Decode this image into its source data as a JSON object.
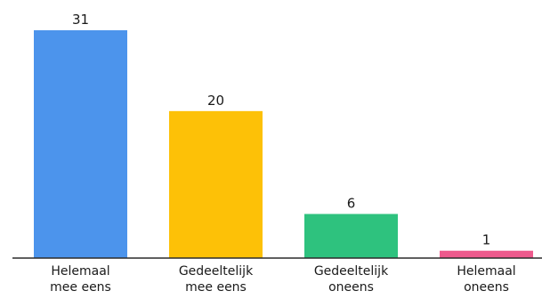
{
  "chart_data": {
    "type": "bar",
    "categories": [
      [
        "Helemaal",
        "mee eens"
      ],
      [
        "Gedeeltelijk",
        "mee eens"
      ],
      [
        "Gedeeltelijk",
        "oneens"
      ],
      [
        "Helemaal",
        "oneens"
      ]
    ],
    "values": [
      31,
      20,
      6,
      1
    ],
    "colors": [
      "#4c94ec",
      "#fdc107",
      "#2ec27e",
      "#ee5a8d"
    ],
    "data_labels": true,
    "title": "",
    "xlabel": "",
    "ylabel": "",
    "ylim": [
      0,
      31
    ],
    "grid": false,
    "legend": "none"
  }
}
